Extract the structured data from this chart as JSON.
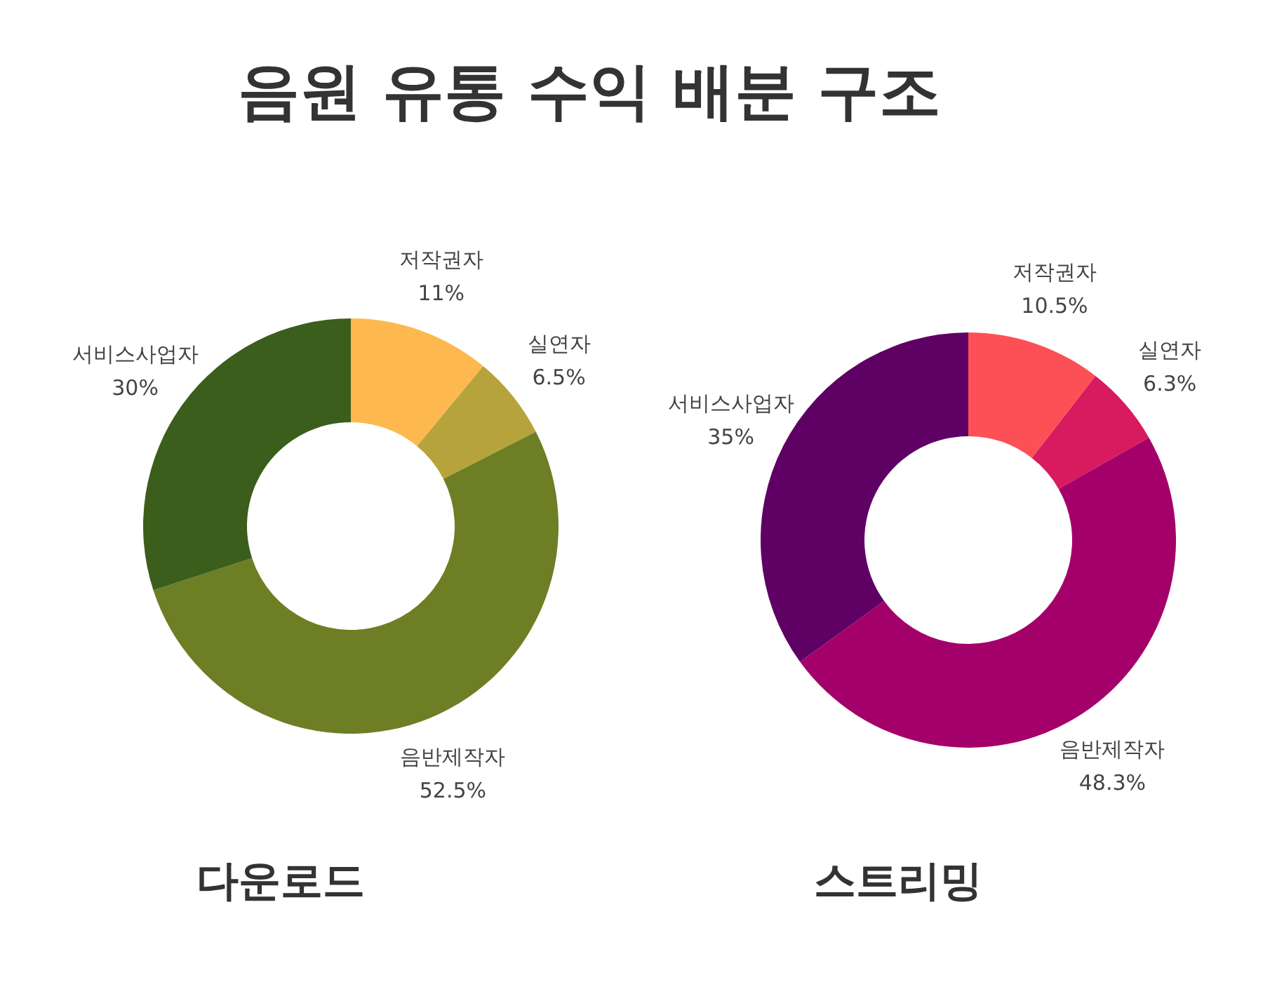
{
  "chart_data": [
    {
      "type": "other",
      "title": "음원 유통 수익 배분 구조"
    },
    {
      "type": "donut",
      "title": "다운로드",
      "categories": [
        "저작권자",
        "실연자",
        "음반제작자",
        "서비스사업자"
      ],
      "values": [
        11,
        6.5,
        52.5,
        30
      ],
      "value_labels": [
        "11%",
        "6.5%",
        "52.5%",
        "30%"
      ],
      "colors": [
        "#fdb94f",
        "#b7a33b",
        "#6e7e25",
        "#3b5e1c"
      ]
    },
    {
      "type": "donut",
      "title": "스트리밍",
      "categories": [
        "저작권자",
        "실연자",
        "음반제작자",
        "서비스사업자"
      ],
      "values": [
        10.5,
        6.3,
        48.3,
        35
      ],
      "value_labels": [
        "10.5%",
        "6.3%",
        "48.3%",
        "35%"
      ],
      "colors": [
        "#fd5056",
        "#d81a5f",
        "#a4006a",
        "#5f0064"
      ]
    }
  ]
}
